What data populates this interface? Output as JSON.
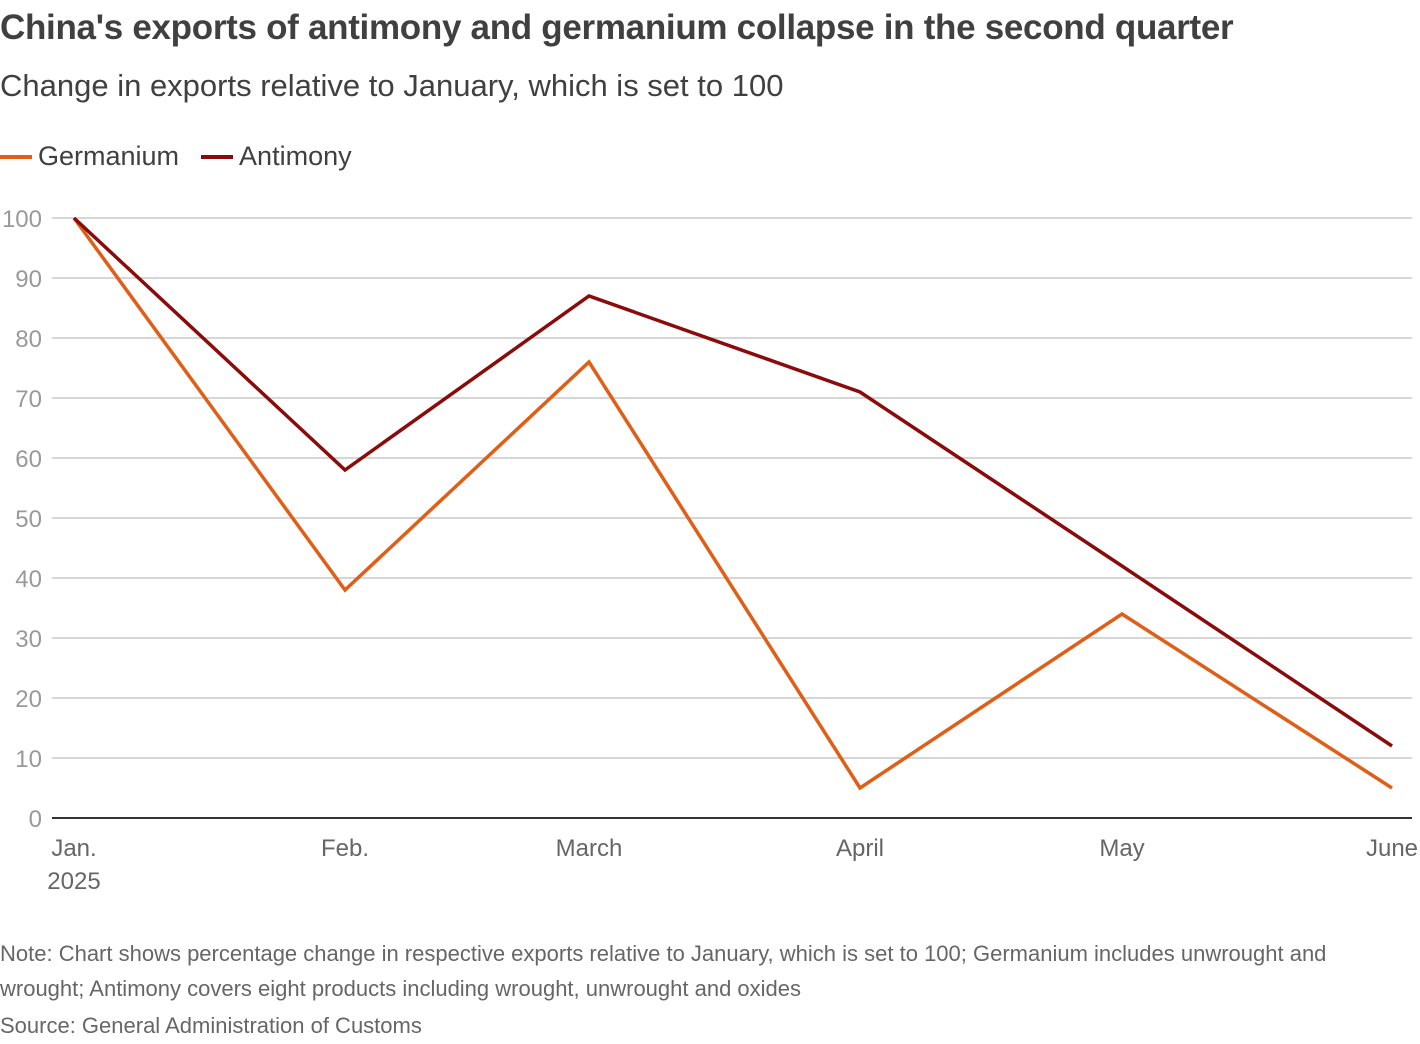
{
  "chart_data": {
    "type": "line",
    "title": "China's exports of antimony and germanium collapse in the second quarter",
    "subtitle": "Change in exports relative to January, which is set to 100",
    "categories": [
      "Jan.",
      "Feb.",
      "March",
      "April",
      "May",
      "June"
    ],
    "category_sublabels": [
      "2025",
      "",
      "",
      "",
      "",
      ""
    ],
    "series": [
      {
        "name": "Germanium",
        "color": "#e05e16",
        "values": [
          100,
          38,
          76,
          5,
          34,
          5
        ]
      },
      {
        "name": "Antimony",
        "color": "#8b0a0a",
        "values": [
          100,
          58,
          87,
          71,
          42,
          12
        ]
      }
    ],
    "ylim": [
      0,
      100
    ],
    "yticks": [
      0,
      10,
      20,
      30,
      40,
      50,
      60,
      70,
      80,
      90,
      100
    ],
    "grid": true,
    "legend_position": "top-left",
    "xlabel": "",
    "ylabel": ""
  },
  "note": "Note: Chart shows percentage change in respective exports relative to January, which is set to 100; Germanium includes unwrought and wrought; Antimony covers eight products including wrought, unwrought and oxides",
  "source": "Source: General Administration of Customs",
  "colors": {
    "grid": "#c8c8c8",
    "axis": "#333333",
    "tick_label": "#999999",
    "x_label": "#666666"
  }
}
